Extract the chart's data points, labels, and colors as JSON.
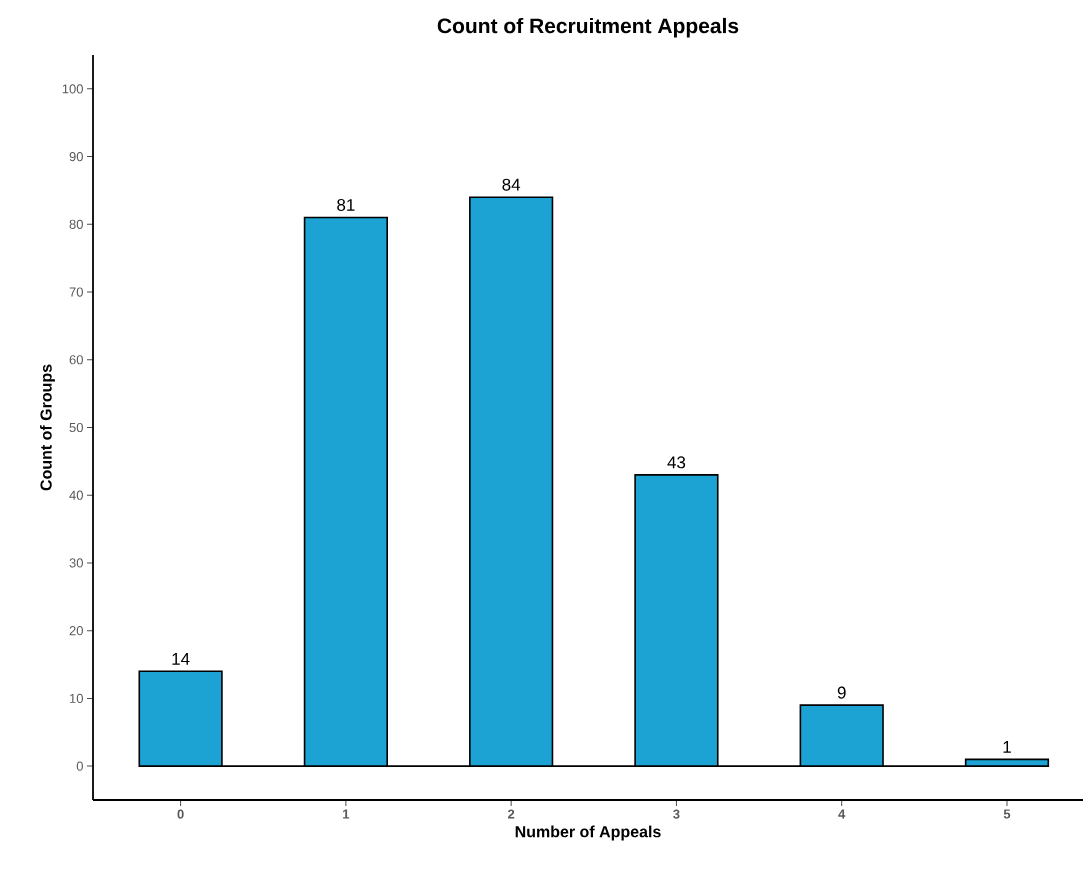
{
  "chart_data": {
    "type": "bar",
    "title": "Count of Recruitment Appeals",
    "xlabel": "Number of Appeals",
    "ylabel": "Count of Groups",
    "categories": [
      "0",
      "1",
      "2",
      "3",
      "4",
      "5"
    ],
    "values": [
      14,
      81,
      84,
      43,
      9,
      1
    ],
    "color": "#1ca3d3",
    "ylim": [
      -5,
      105
    ],
    "yticks": [
      0,
      10,
      20,
      30,
      40,
      50,
      60,
      70,
      80,
      90,
      100
    ],
    "ref_lines": [
      {
        "axis": "y",
        "value": 0,
        "color": "#000000"
      }
    ],
    "grid": false,
    "data_labels": true
  }
}
